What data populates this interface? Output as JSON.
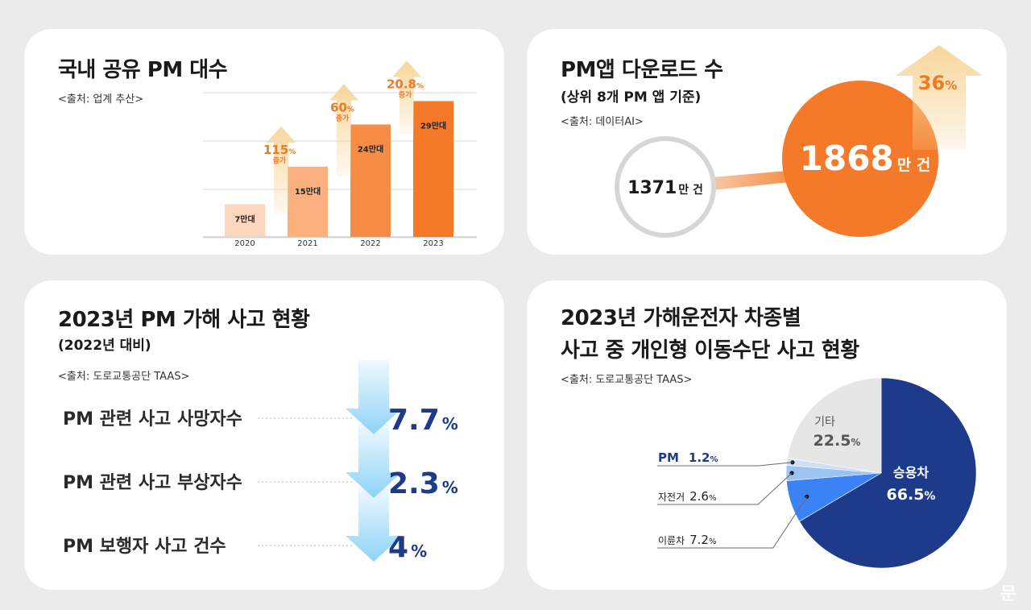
{
  "colors": {
    "bar_light": "#fdd7bd",
    "bar_mid": "#fbb07d",
    "bar_strong": "#f78d45",
    "bar_dark": "#f47a2a",
    "growth_arrow": "#f7d69b",
    "growth_text": "#f07a22",
    "navy": "#1e3a8a",
    "blue_mid": "#3b82f6",
    "gray_slice": "#e6e6e6",
    "sky_arrow": "#8fd3f7"
  },
  "watermark": "문",
  "panel_pm_count": {
    "title": "국내 공유 PM 대수",
    "source": "<출처: 업계 추산>",
    "chart_data": {
      "type": "bar",
      "categories": [
        "2020",
        "2021",
        "2022",
        "2023"
      ],
      "values": [
        7,
        15,
        24,
        29
      ],
      "value_labels": [
        "7만대",
        "15만대",
        "24만대",
        "29만대"
      ],
      "unit": "만대",
      "growth": [
        {
          "value": "115",
          "unit": "%",
          "label": "증가"
        },
        {
          "value": "60",
          "unit": "%",
          "label": "증가"
        },
        {
          "value": "20.8",
          "unit": "%",
          "label": "증가"
        }
      ],
      "ylim": [
        0,
        32
      ]
    }
  },
  "panel_downloads": {
    "title": "PM앱 다운로드 수",
    "subtitle": "(상위 8개 PM 앱 기준)",
    "source": "<출처: 데이터AI>",
    "chart_data": {
      "type": "bubble",
      "points": [
        {
          "value": 1371,
          "number": "1371",
          "unit": "만 건"
        },
        {
          "value": 1868,
          "number": "1868",
          "unit": "만 건"
        }
      ],
      "growth": {
        "value": "36",
        "unit": "%"
      }
    }
  },
  "panel_accidents": {
    "title": "2023년 PM 가해 사고 현황",
    "subtitle": "(2022년 대비)",
    "source": "<출처: 도로교통공단 TAAS>",
    "chart_data": {
      "type": "table",
      "rows": [
        {
          "label": "PM 관련 사고 사망자수",
          "value": "7.7",
          "unit": "%",
          "direction": "decrease"
        },
        {
          "label": "PM 관련 사고 부상자수",
          "value": "2.3",
          "unit": "%",
          "direction": "decrease"
        },
        {
          "label": "PM 보행자 사고 건수",
          "value": "4",
          "unit": "%",
          "direction": "decrease"
        }
      ]
    }
  },
  "panel_vehicle_type": {
    "title_line1": "2023년 가해운전자 차종별",
    "title_line2": "사고 중 개인형 이동수단 사고 현황",
    "source": "<출처: 도로교통공단 TAAS>",
    "chart_data": {
      "type": "pie",
      "slices": [
        {
          "name": "승용차",
          "value": 66.5,
          "label": "66.5",
          "unit": "%",
          "color": "#1e3a8a"
        },
        {
          "name": "이륜차",
          "value": 7.2,
          "label": "7.2",
          "unit": "%",
          "color": "#3b82f6"
        },
        {
          "name": "자전거",
          "value": 2.6,
          "label": "2.6",
          "unit": "%",
          "color": "#9cc3f2"
        },
        {
          "name": "PM",
          "value": 1.2,
          "label": "1.2",
          "unit": "%",
          "color": "#cddff7"
        },
        {
          "name": "기타",
          "value": 22.5,
          "label": "22.5",
          "unit": "%",
          "color": "#e6e6e6"
        }
      ]
    }
  }
}
